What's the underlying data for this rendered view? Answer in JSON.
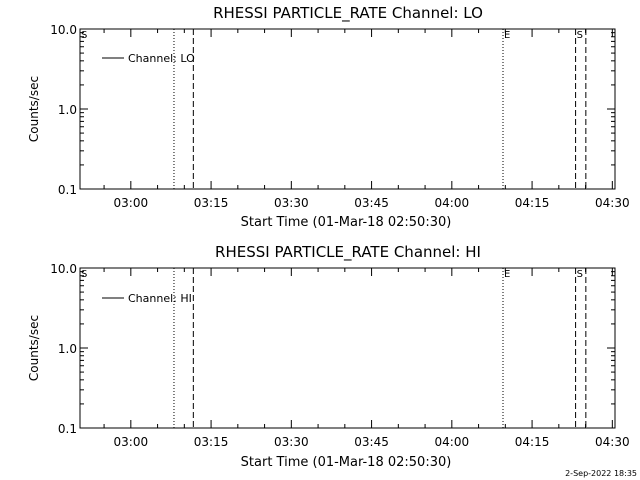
{
  "footer": {
    "timestamp": "2-Sep-2022 18:35"
  },
  "chart_data": [
    {
      "type": "line",
      "title": "RHESSI PARTICLE_RATE Channel: LO",
      "xlabel": "Start Time (01-Mar-18 02:50:30)",
      "ylabel": "Counts/sec",
      "y_scale": "log",
      "ylim": [
        0.1,
        10.0
      ],
      "xlim": [
        "02:50:30",
        "04:30:30"
      ],
      "x_ticks": [
        "03:00",
        "03:15",
        "03:30",
        "03:45",
        "04:00",
        "04:15",
        "04:30"
      ],
      "y_ticks": [
        "0.1",
        "1.0",
        "10.0"
      ],
      "legend": {
        "position": "top-left",
        "entries": [
          "Channel: LO"
        ]
      },
      "series": [
        {
          "name": "Channel: LO",
          "values": []
        }
      ],
      "markers": [
        {
          "label": "S",
          "time": "02:50:30",
          "style": "none"
        },
        {
          "label": "",
          "time": "03:08:04",
          "style": "dotted"
        },
        {
          "label": "",
          "time": "03:11:41",
          "style": "dashed"
        },
        {
          "label": "E",
          "time": "04:09:34",
          "style": "dotted"
        },
        {
          "label": "S",
          "time": "04:23:08",
          "style": "dashed"
        },
        {
          "label": "",
          "time": "04:25:03",
          "style": "dashed"
        }
      ]
    },
    {
      "type": "line",
      "title": "RHESSI PARTICLE_RATE Channel: HI",
      "xlabel": "Start Time (01-Mar-18 02:50:30)",
      "ylabel": "Counts/sec",
      "y_scale": "log",
      "ylim": [
        0.1,
        10.0
      ],
      "xlim": [
        "02:50:30",
        "04:30:30"
      ],
      "x_ticks": [
        "03:00",
        "03:15",
        "03:30",
        "03:45",
        "04:00",
        "04:15",
        "04:30"
      ],
      "y_ticks": [
        "0.1",
        "1.0",
        "10.0"
      ],
      "legend": {
        "position": "top-left",
        "entries": [
          "Channel: HI"
        ]
      },
      "series": [
        {
          "name": "Channel: HI",
          "values": []
        }
      ],
      "markers": [
        {
          "label": "S",
          "time": "02:50:30",
          "style": "none"
        },
        {
          "label": "",
          "time": "03:08:04",
          "style": "dotted"
        },
        {
          "label": "",
          "time": "03:11:41",
          "style": "dashed"
        },
        {
          "label": "E",
          "time": "04:09:34",
          "style": "dotted"
        },
        {
          "label": "S",
          "time": "04:23:08",
          "style": "dashed"
        },
        {
          "label": "",
          "time": "04:25:03",
          "style": "dashed"
        }
      ]
    }
  ]
}
